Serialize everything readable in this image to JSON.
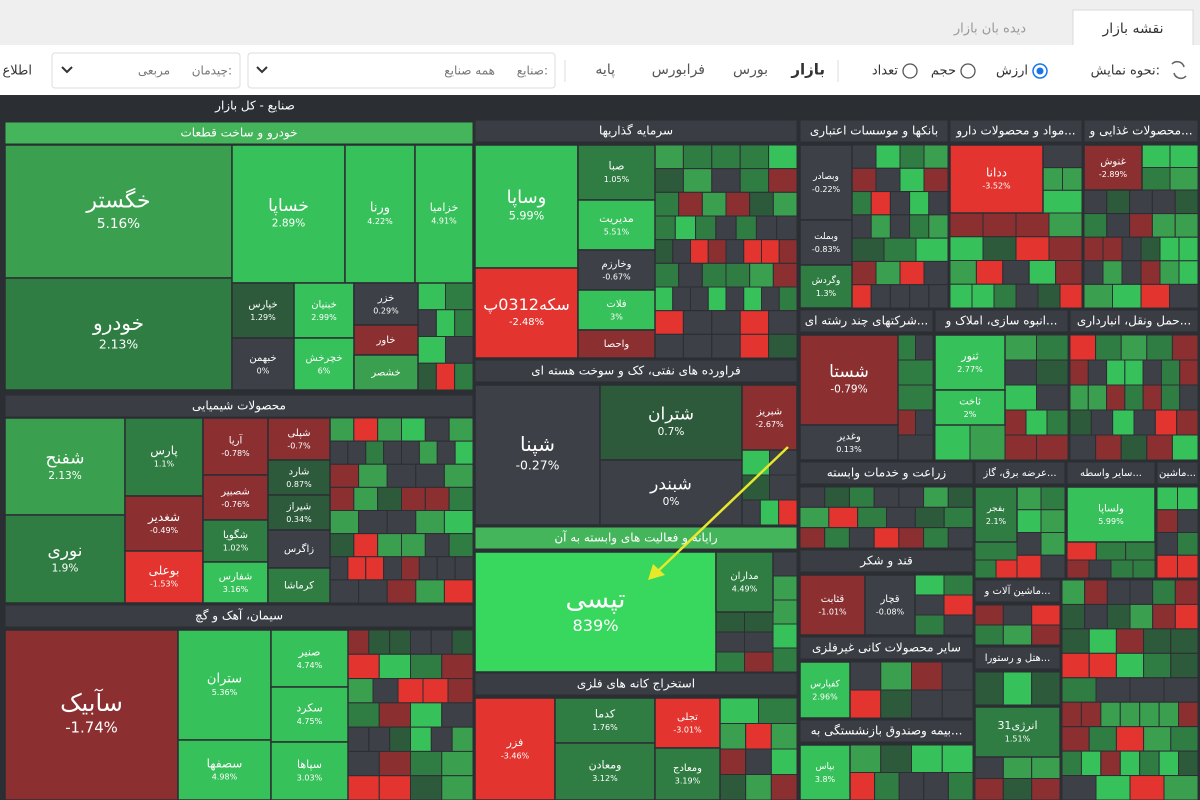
{
  "tabs": [
    "نقشه بازار",
    "دیده بان بازار"
  ],
  "toolbar": {
    "display_label": "نحوه نمایش:",
    "display_options": [
      "ارزش",
      "حجم",
      "تعداد"
    ],
    "markets": [
      "بازار",
      "بورس",
      "فرابورس",
      "پایه"
    ],
    "industry_label": "صنایع:",
    "industry_value": "همه صنایع",
    "layout_label": "چیدمان:",
    "layout_value": "مربعی",
    "info": "اطلاع"
  },
  "treemap": {
    "title": "صنایع - کل بازار",
    "sectors": [
      {
        "name": "خودرو و ساخت قطعات",
        "tiles": [
          {
            "symbol": "خگستر",
            "change": "5.16%"
          },
          {
            "symbol": "خودرو",
            "change": "2.13%"
          },
          {
            "symbol": "خساپا",
            "change": "2.89%"
          },
          {
            "symbol": "ورنا",
            "change": "4.22%"
          },
          {
            "symbol": "خزامیا",
            "change": "4.91%"
          },
          {
            "symbol": "خپارس",
            "change": "1.29%"
          },
          {
            "symbol": "خبنیان",
            "change": "2.99%"
          },
          {
            "symbol": "خزر",
            "change": "0.29%"
          },
          {
            "symbol": "خاور"
          },
          {
            "symbol": "خبهمن",
            "change": "0%"
          },
          {
            "symbol": "خچرخش",
            "change": "6%"
          },
          {
            "symbol": "خشصر"
          }
        ]
      },
      {
        "name": "محصولات شیمیایی",
        "tiles": [
          {
            "symbol": "شفنح",
            "change": "2.13%"
          },
          {
            "symbol": "نوری",
            "change": "1.9%"
          },
          {
            "symbol": "پارس",
            "change": "1.1%"
          },
          {
            "symbol": "شغدیر",
            "change": "-0.49%"
          },
          {
            "symbol": "بوعلی",
            "change": "-1.53%"
          },
          {
            "symbol": "آریا",
            "change": "-0.78%"
          },
          {
            "symbol": "شصبیر",
            "change": "-0.76%"
          },
          {
            "symbol": "شگویا",
            "change": "1.02%"
          },
          {
            "symbol": "شفارس",
            "change": "3.16%"
          },
          {
            "symbol": "شپلی",
            "change": "-0.7%"
          },
          {
            "symbol": "شارد",
            "change": "0.87%"
          },
          {
            "symbol": "شیراز",
            "change": "0.34%"
          },
          {
            "symbol": "زاگرس"
          },
          {
            "symbol": "کرماشا"
          }
        ]
      },
      {
        "name": "سیمان، آهک و گچ",
        "tiles": [
          {
            "symbol": "سآبیک",
            "change": "-1.74%"
          },
          {
            "symbol": "ستران",
            "change": "5.36%"
          },
          {
            "symbol": "سصفها",
            "change": "4.98%"
          },
          {
            "symbol": "صنیر",
            "change": "4.74%"
          },
          {
            "symbol": "سکرد",
            "change": "4.75%"
          },
          {
            "symbol": "سپاها",
            "change": "3.03%"
          }
        ]
      },
      {
        "name": "سرمایه گذاریها",
        "tiles": [
          {
            "symbol": "وساپا",
            "change": "5.99%"
          },
          {
            "symbol": "سکه0312پ",
            "change": "-2.48%"
          },
          {
            "symbol": "صبا",
            "change": "1.05%"
          },
          {
            "symbol": "مدیریت",
            "change": "5.51%"
          },
          {
            "symbol": "وخارزم",
            "change": "-0.67%"
          },
          {
            "symbol": "فلات",
            "change": "3%"
          },
          {
            "symbol": "واحصا"
          }
        ]
      },
      {
        "name": "فراورده های نفتی، کک و سوخت هسته ای",
        "tiles": [
          {
            "symbol": "شپنا",
            "change": "-0.27%"
          },
          {
            "symbol": "شتران",
            "change": "0.7%"
          },
          {
            "symbol": "شبندر",
            "change": "0%"
          },
          {
            "symbol": "شبریز",
            "change": "-2.67%"
          }
        ]
      },
      {
        "name": "رایانه و فعالیت های وابسته به آن",
        "tiles": [
          {
            "symbol": "تپسی",
            "change": "839%"
          },
          {
            "symbol": "مداران",
            "change": "4.49%"
          }
        ]
      },
      {
        "name": "استخراج کانه های فلزی",
        "tiles": [
          {
            "symbol": "فزر",
            "change": "-3.46%"
          },
          {
            "symbol": "کدما",
            "change": "1.76%"
          },
          {
            "symbol": "ومعادن",
            "change": "3.12%"
          },
          {
            "symbol": "تجلی",
            "change": "-3.01%"
          },
          {
            "symbol": "ومعادج",
            "change": "3.19%"
          }
        ]
      },
      {
        "name": "بانکها و موسسات اعتباری",
        "tiles": [
          {
            "symbol": "وبصادر",
            "change": "-0.22%"
          },
          {
            "symbol": "وبملت",
            "change": "-0.83%"
          },
          {
            "symbol": "وگردش",
            "change": "1.3%"
          }
        ]
      },
      {
        "name": "مواد و محصولات دارو...",
        "tiles": [
          {
            "symbol": "ددانا",
            "change": "-3.52%"
          }
        ]
      },
      {
        "name": "محصولات غذایی و...",
        "tiles": [
          {
            "symbol": "غنوش",
            "change": "-2.89%"
          }
        ]
      },
      {
        "name": "شرکتهای چند رشته ای...",
        "tiles": [
          {
            "symbol": "شستا",
            "change": "-0.79%"
          },
          {
            "symbol": "وغدیر",
            "change": "0.13%"
          }
        ]
      },
      {
        "name": "انبوه سازی، املاک و...",
        "tiles": [
          {
            "symbol": "ثنور",
            "change": "2.77%"
          },
          {
            "symbol": "ثاخت",
            "change": "2%"
          }
        ]
      },
      {
        "name": "حمل ونقل، انبارداری...",
        "tiles": []
      },
      {
        "name": "زراعت و خدمات وابسته",
        "tiles": []
      },
      {
        "name": "قند و شکر",
        "tiles": [
          {
            "symbol": "قثابت",
            "change": "-1.01%"
          },
          {
            "symbol": "قچار",
            "change": "-0.08%"
          }
        ]
      },
      {
        "name": "سایر محصولات کانی غیرفلزی",
        "tiles": [
          {
            "symbol": "کفپارس",
            "change": "2.96%"
          }
        ]
      },
      {
        "name": "بیمه وصندوق بازنشستگی به...",
        "tiles": [
          {
            "symbol": "بپاس",
            "change": "3.8%"
          }
        ]
      },
      {
        "name": "عرضه برق، گاز...",
        "tiles": [
          {
            "symbol": "بفجر",
            "change": "2.1%"
          }
        ]
      },
      {
        "name": "سایر واسطه...",
        "tiles": [
          {
            "symbol": "ولساپا",
            "change": "5.99%"
          }
        ]
      },
      {
        "name": "ماشین...",
        "tiles": []
      },
      {
        "name": "ماشین آلات و...",
        "tiles": []
      },
      {
        "name": "هتل و رستورا...",
        "tiles": []
      }
    ],
    "other_tiles": [
      {
        "symbol": "انرژی31",
        "change": "1.51%"
      }
    ]
  }
}
